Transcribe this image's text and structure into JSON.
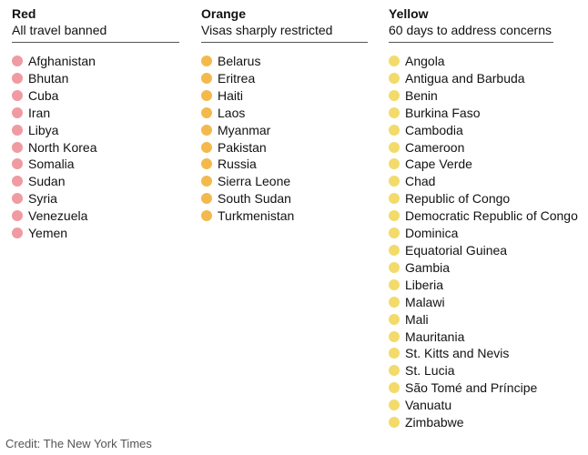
{
  "columns": [
    {
      "title": "Red",
      "subtitle": "All travel banned",
      "color": "#ef9ba1",
      "items": [
        "Afghanistan",
        "Bhutan",
        "Cuba",
        "Iran",
        "Libya",
        "North Korea",
        "Somalia",
        "Sudan",
        "Syria",
        "Venezuela",
        "Yemen"
      ]
    },
    {
      "title": "Orange",
      "subtitle": "Visas sharply restricted",
      "color": "#f4b94d",
      "items": [
        "Belarus",
        "Eritrea",
        "Haiti",
        "Laos",
        "Myanmar",
        "Pakistan",
        "Russia",
        "Sierra Leone",
        "South Sudan",
        "Turkmenistan"
      ]
    },
    {
      "title": "Yellow",
      "subtitle": "60 days to address concerns",
      "color": "#f2db6b",
      "items": [
        "Angola",
        "Antigua and Barbuda",
        "Benin",
        "Burkina Faso",
        "Cambodia",
        "Cameroon",
        "Cape Verde",
        "Chad",
        "Republic of Congo",
        "Democratic Republic of Congo",
        "Dominica",
        "Equatorial Guinea",
        "Gambia",
        "Liberia",
        "Malawi",
        "Mali",
        "Mauritania",
        "St. Kitts and Nevis",
        "St. Lucia",
        "São Tomé and Príncipe",
        "Vanuatu",
        "Zimbabwe"
      ]
    }
  ],
  "credit": "Credit: The New York Times"
}
